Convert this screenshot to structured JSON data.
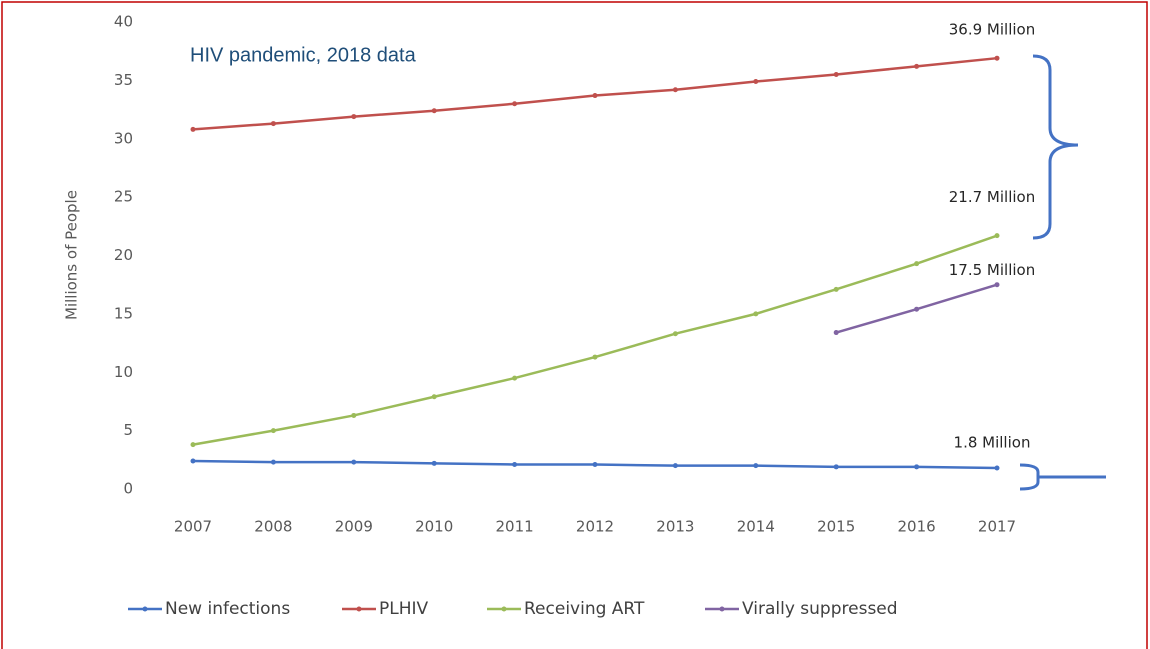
{
  "chart_data": {
    "type": "line",
    "title": "HIV pandemic, 2018 data",
    "ylabel": "Millions of People",
    "categories": [
      "2007",
      "2008",
      "2009",
      "2010",
      "2011",
      "2012",
      "2013",
      "2014",
      "2015",
      "2016",
      "2017"
    ],
    "ylim": [
      0,
      40
    ],
    "yticks": [
      0,
      5,
      10,
      15,
      20,
      25,
      30,
      35,
      40
    ],
    "grid": false,
    "legend": "bottom",
    "series": [
      {
        "name": "New infections",
        "color": "#4472c4",
        "values": [
          2.4,
          2.3,
          2.3,
          2.2,
          2.1,
          2.1,
          2.0,
          2.0,
          1.9,
          1.9,
          1.8
        ],
        "value_labels": [
          null,
          null,
          null,
          null,
          null,
          null,
          null,
          null,
          null,
          null,
          "1.8 Million"
        ]
      },
      {
        "name": "PLHIV",
        "color": "#c0504d",
        "values": [
          30.8,
          31.3,
          31.9,
          32.4,
          33.0,
          33.7,
          34.2,
          34.9,
          35.5,
          36.2,
          36.9
        ],
        "value_labels": [
          null,
          null,
          null,
          null,
          null,
          null,
          null,
          null,
          null,
          null,
          "36.9 Million"
        ]
      },
      {
        "name": "Receiving ART",
        "color": "#9bbb59",
        "values": [
          3.8,
          5.0,
          6.3,
          7.9,
          9.5,
          11.3,
          13.3,
          15.0,
          17.1,
          19.3,
          21.7
        ],
        "value_labels": [
          null,
          null,
          null,
          null,
          null,
          null,
          null,
          null,
          null,
          null,
          "21.7 Million"
        ]
      },
      {
        "name": "Virally suppressed",
        "color": "#8064a2",
        "values": [
          null,
          null,
          null,
          null,
          null,
          null,
          null,
          null,
          13.4,
          15.4,
          17.5
        ],
        "value_labels": [
          null,
          null,
          null,
          null,
          null,
          null,
          null,
          null,
          null,
          null,
          "17.5 Million"
        ]
      }
    ]
  }
}
